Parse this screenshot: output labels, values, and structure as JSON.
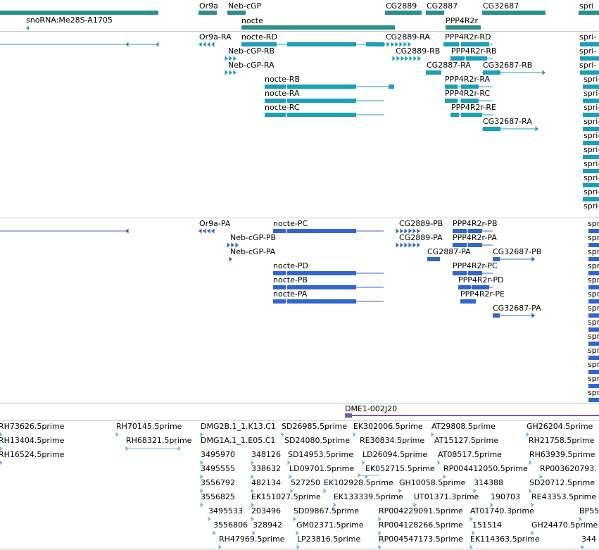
{
  "colors": {
    "gene": "#2a8f8c",
    "transcript": "#1aa0b8",
    "protein": "#3366cc",
    "clone": "#7fb8dc",
    "contig": "#7a55b5",
    "separator": "#c8c8c8"
  },
  "gene_track": {
    "labels": [
      "Or9a",
      "Neb-cGP",
      "CG2889",
      "CG2887",
      "CG32687",
      "spri",
      "snoRNA:Me28S-A1705",
      "nocte",
      "PPP4R2r"
    ]
  },
  "transcript_track": {
    "labels": [
      "Or9a-RA",
      "nocte-RD",
      "CG2889-RA",
      "PPP4R2r-RD",
      "spri-",
      "Neb-cGP-RB",
      "CG2889-RB",
      "PPP4R2r-RB",
      "spri-",
      "Neb-cGP-RA",
      "CG2887-RA",
      "CG32687-RB",
      "spri-",
      "nocte-RB",
      "PPP4R2r-RA",
      "spri-",
      "nocte-RA",
      "PPP4R2r-RC",
      "spri-",
      "nocte-RC",
      "PPP4R2r-RE",
      "spri-",
      "CG32687-RA",
      "spri-",
      "spri-",
      "spri-",
      "spri-",
      "spri-",
      "spri-",
      "spri-"
    ]
  },
  "protein_track": {
    "labels": [
      "Or9a-PA",
      "nocte-PC",
      "CG2889-PB",
      "PPP4R2r-PB",
      "spri",
      "Neb-cGP-PB",
      "CG2889-PA",
      "PPP4R2r-PA",
      "spri",
      "Neb-cGP-PA",
      "CG2887-PA",
      "CG32687-PB",
      "spri",
      "nocte-PD",
      "PPP4R2r-PC",
      "spri",
      "nocte-PB",
      "PPP4R2r-PD",
      "spri",
      "nocte-PA",
      "PPP4R2r-PE",
      "spri",
      "CG32687-PA",
      "spri",
      "spri",
      "spri",
      "spri",
      "spri",
      "spri",
      "spri",
      "spri",
      "spri",
      "spri"
    ]
  },
  "contig_track": {
    "label": "DME1-002J20"
  },
  "clone_track": {
    "labels": [
      "RH73626.5prime",
      "RH70145.5prime",
      "DMG2B.1_1.K13.C1",
      "SD26985.5prime",
      "EK302006.5prime",
      "AT29808.5prime",
      "GH26204.5prime",
      "RH13404.5prime",
      "RH68321.5prime",
      "DMG1A.1_1.E05.C1",
      "SD24080.5prime",
      "RE30834.5prime",
      "AT15127.5prime",
      "RH21758.5prime",
      "RH16524.5prime",
      "3495970",
      "348126",
      "SD14953.5prime",
      "LD26094.5prime",
      "AT08517.5prime",
      "RH63939.5prime",
      "3495555",
      "338632",
      "LD09701.5prime",
      "EK052715.5prime",
      "RP004412050.5prime",
      "RP003620793.",
      "3556792",
      "482134",
      "527250",
      "EK102928.5prime",
      "GH10058.5prime",
      "314388",
      "SD20712.5prime",
      "3556825",
      "EK151027.5prime",
      "EK133339.5prime",
      "UT01371.3prime",
      "190703",
      "RE43353.5prime",
      "3495533",
      "203496",
      "SD09867.5prime",
      "RP004229091.5prime",
      "AT01740.3prime",
      "BP55",
      "3556806",
      "328942",
      "GM02371.5prime",
      "RP004128266.5prime",
      "151514",
      "GH24470.5prime",
      "RH47969.5prime",
      "LP23816.5prime",
      "RP004547173.5prime",
      "EK114363.5prime",
      "344"
    ]
  }
}
